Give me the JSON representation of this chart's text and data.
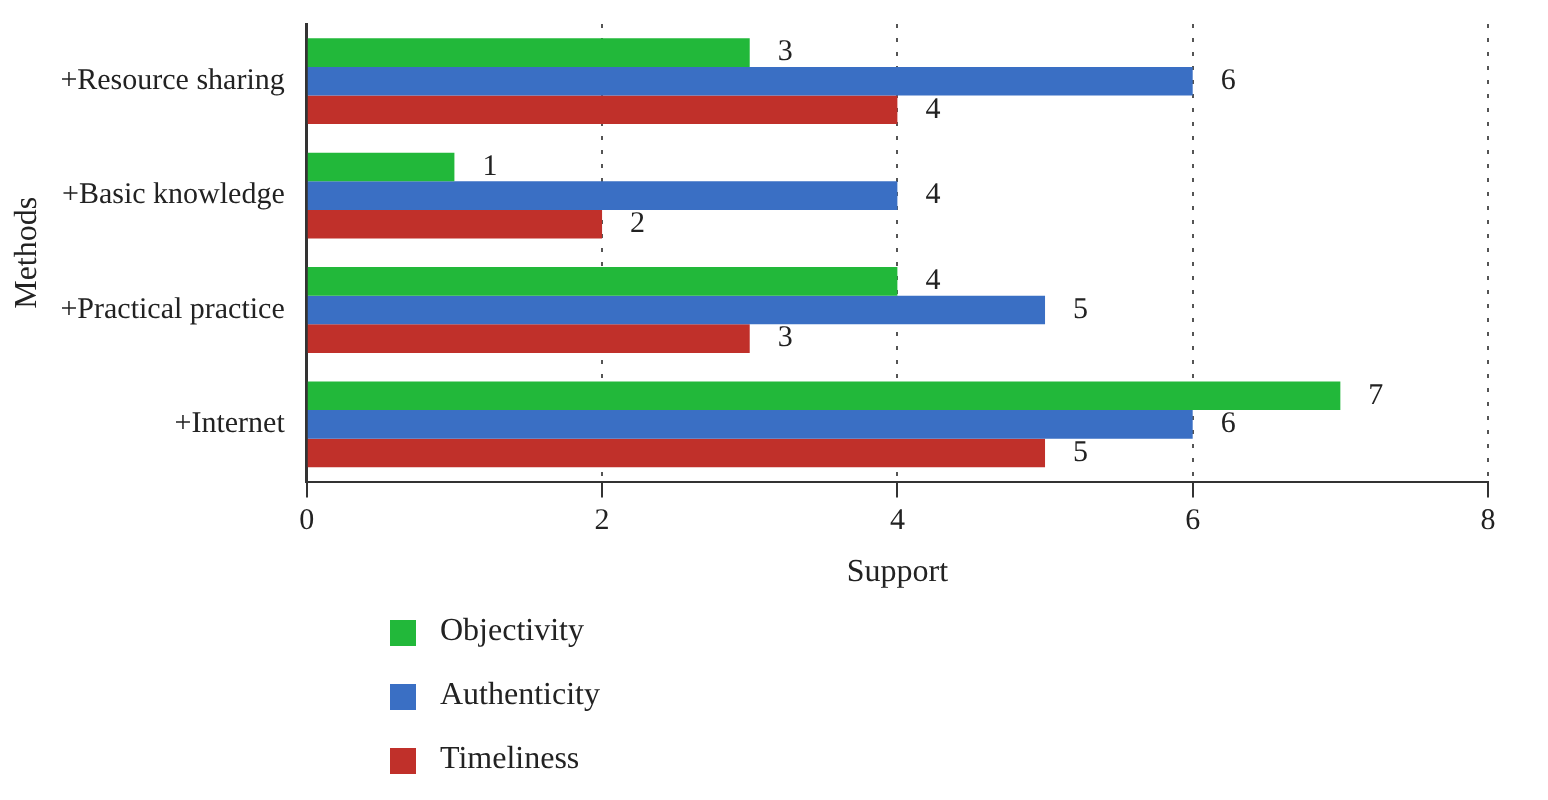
{
  "chart_data": {
    "type": "bar",
    "orientation": "horizontal",
    "xlabel": "Support",
    "ylabel": "Methods",
    "categories": [
      "+Resource sharing",
      "+Basic knowledge",
      "+Practical practice",
      "+Internet"
    ],
    "series": [
      {
        "name": "Objectivity",
        "color": "#22b83a",
        "values": [
          3,
          1,
          4,
          7
        ]
      },
      {
        "name": "Authenticity",
        "color": "#3a6fc4",
        "values": [
          6,
          4,
          5,
          6
        ]
      },
      {
        "name": "Timeliness",
        "color": "#c0302a",
        "values": [
          4,
          2,
          3,
          5
        ]
      }
    ],
    "xlim": [
      0,
      8
    ],
    "xticks": [
      0,
      2,
      4,
      6,
      8
    ],
    "grid": "x",
    "legend": "bottom",
    "data_labels": true
  }
}
